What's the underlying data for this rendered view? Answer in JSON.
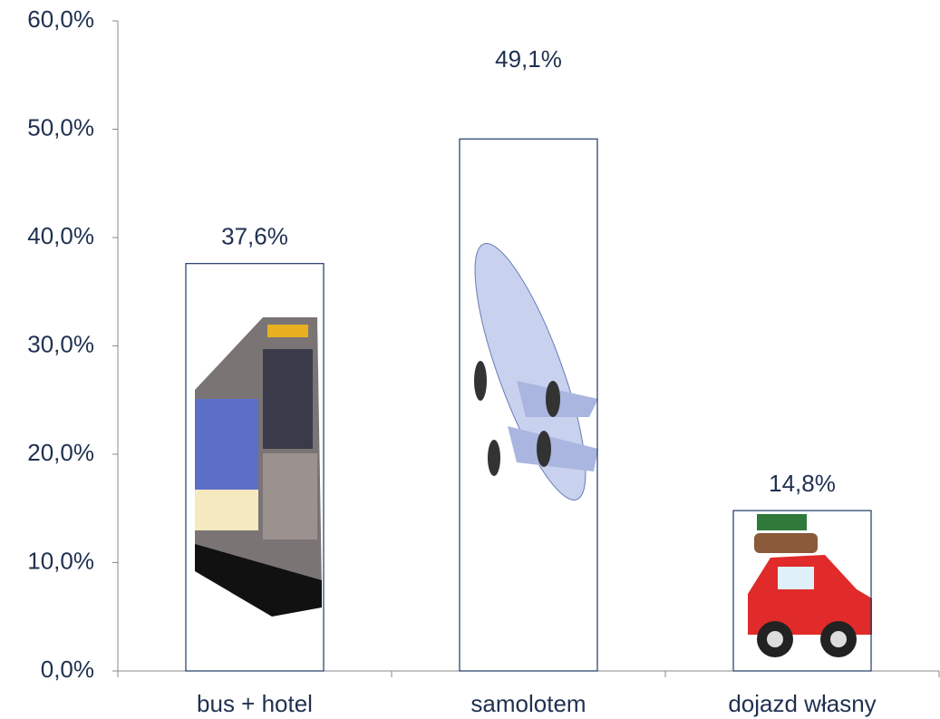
{
  "chart_data": {
    "type": "bar",
    "categories": [
      "bus + hotel",
      "samolotem",
      "dojazd własny"
    ],
    "values": [
      37.6,
      49.1,
      14.8
    ],
    "value_labels": [
      "37,6%",
      "49,1%",
      "14,8%"
    ],
    "color": "#1f3864",
    "ylim": [
      0,
      60
    ],
    "yticks": [
      {
        "value": 0,
        "label": "0,0%"
      },
      {
        "value": 10,
        "label": "10,0%"
      },
      {
        "value": 20,
        "label": "20,0%"
      },
      {
        "value": 30,
        "label": "30,0%"
      },
      {
        "value": 40,
        "label": "40,0%"
      },
      {
        "value": 50,
        "label": "50,0%"
      },
      {
        "value": 60,
        "label": "60,0%"
      }
    ]
  }
}
